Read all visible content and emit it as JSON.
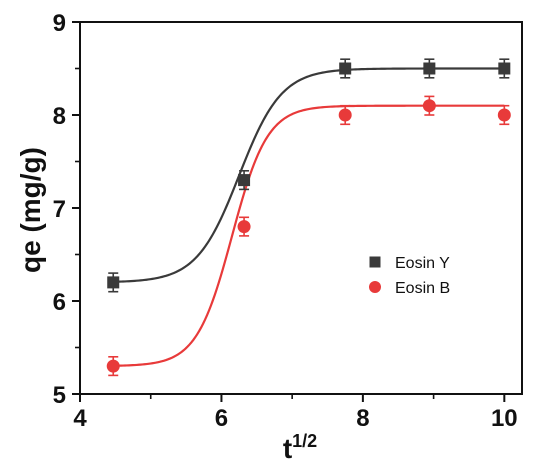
{
  "chart_data": {
    "type": "scatter",
    "title": "",
    "xlabel": "t",
    "xlabel_superscript": "1/2",
    "ylabel": "qe (mg/g)",
    "xlim": [
      4,
      10.25
    ],
    "ylim": [
      5,
      9
    ],
    "xticks": [
      4,
      6,
      8,
      10
    ],
    "yticks": [
      5,
      6,
      7,
      8,
      9
    ],
    "x_minor_ticks": [
      5,
      7,
      9
    ],
    "y_minor_ticks": [
      5.5,
      6.5,
      7.5,
      8.5
    ],
    "grid": false,
    "legend_position": "center-right",
    "series": [
      {
        "name": "Eosin Y",
        "marker": "square",
        "color": "#3a3a3a",
        "x": [
          4.47,
          6.32,
          7.75,
          8.94,
          10.0
        ],
        "y": [
          6.2,
          7.3,
          8.5,
          8.5,
          8.5
        ],
        "error": [
          0.1,
          0.1,
          0.1,
          0.1,
          0.1
        ],
        "fit": {
          "model": "sigmoid",
          "A1": 6.2,
          "A2": 8.5,
          "x0": 6.25,
          "dx": 0.3
        }
      },
      {
        "name": "Eosin B",
        "marker": "circle",
        "color": "#e83a3a",
        "x": [
          4.47,
          6.32,
          7.75,
          8.94,
          10.0
        ],
        "y": [
          5.3,
          6.8,
          8.0,
          8.1,
          8.0
        ],
        "error": [
          0.1,
          0.1,
          0.1,
          0.1,
          0.1
        ],
        "fit": {
          "model": "sigmoid",
          "A1": 5.3,
          "A2": 8.1,
          "x0": 6.15,
          "dx": 0.25
        }
      }
    ]
  }
}
